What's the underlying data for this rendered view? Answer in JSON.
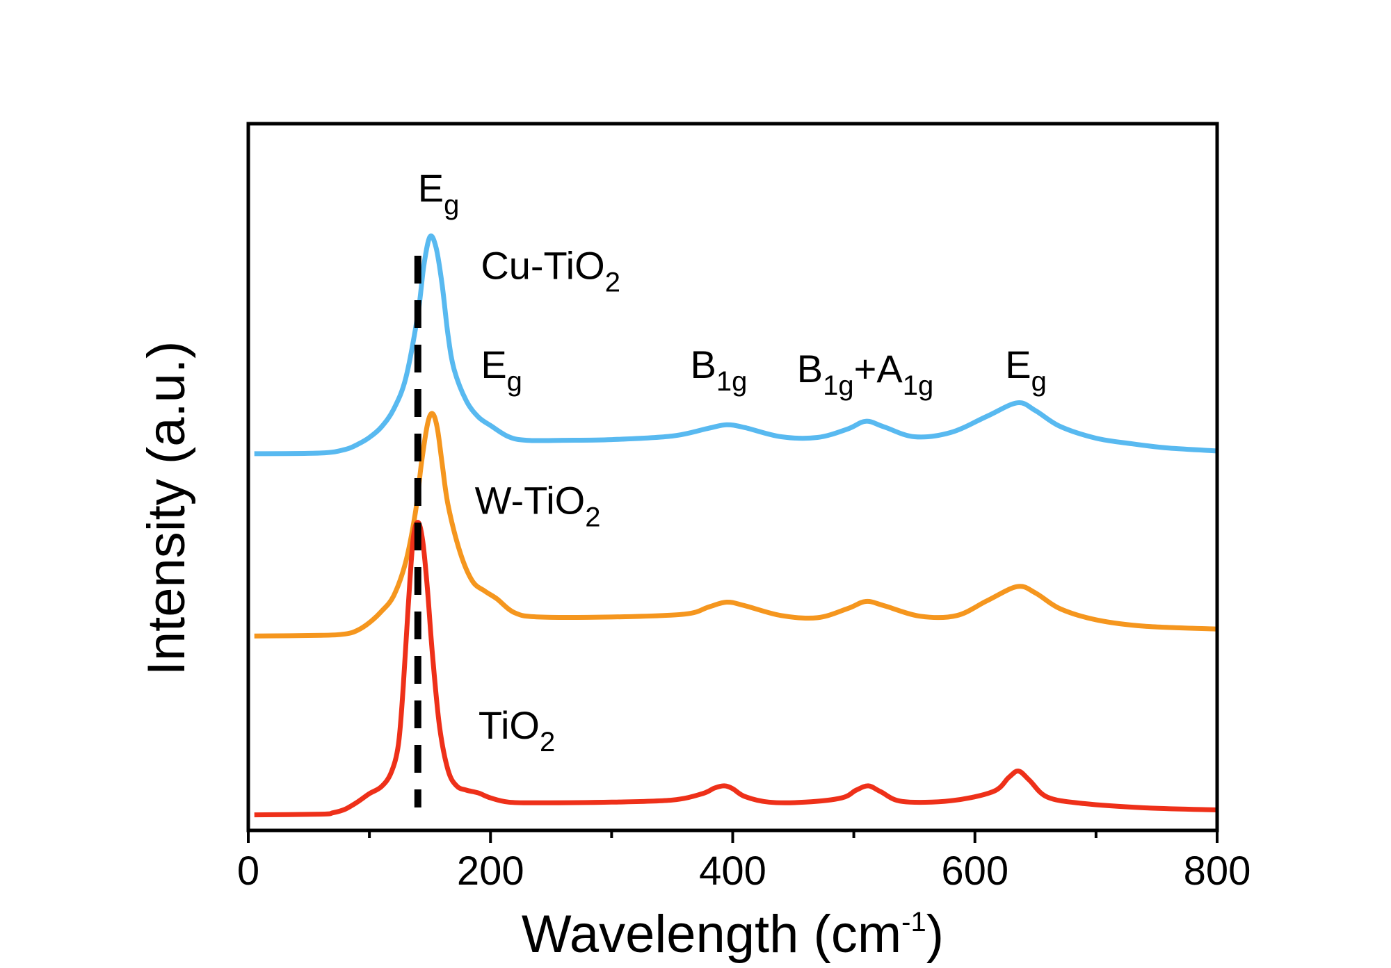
{
  "chart_data": {
    "type": "line",
    "title": "",
    "xlabel": "Wavelength (cm",
    "xlabel_sup": "-1",
    "xlabel_suffix": ")",
    "ylabel": "Intensity (a.u.)",
    "xlim": [
      0,
      800
    ],
    "ylim": [
      0,
      1000
    ],
    "x_ticks": [
      "0",
      "200",
      "400",
      "600",
      "800"
    ],
    "x_tick_values": [
      0,
      200,
      400,
      600,
      800
    ],
    "x_minor_ticks": [
      100,
      300,
      500,
      700
    ],
    "grid": false,
    "reference_line": {
      "x": 140,
      "style": "dashed",
      "color": "#000000"
    },
    "series": [
      {
        "name": "Cu-TiO2",
        "label_main": "Cu-TiO",
        "label_sub": "2",
        "color": "#58B9F0",
        "x": [
          5,
          60,
          80,
          90,
          100,
          110,
          120,
          130,
          140,
          145,
          150,
          155,
          160,
          165,
          170,
          180,
          190,
          200,
          215,
          230,
          260,
          300,
          350,
          380,
          395,
          410,
          440,
          470,
          495,
          510,
          525,
          550,
          580,
          610,
          635,
          650,
          670,
          700,
          730,
          760,
          800
        ],
        "y": [
          533,
          534,
          539,
          546,
          556,
          571,
          596,
          640,
          730,
          800,
          840,
          825,
          773,
          700,
          652,
          608,
          585,
          573,
          557,
          552,
          552,
          553,
          558,
          569,
          574,
          570,
          557,
          556,
          568,
          579,
          571,
          557,
          563,
          586,
          605,
          594,
          572,
          555,
          547,
          541,
          537
        ]
      },
      {
        "name": "W-TiO2",
        "label_main": "W-TiO",
        "label_sub": "2",
        "color": "#F5961E",
        "x": [
          5,
          60,
          80,
          90,
          100,
          110,
          120,
          130,
          138,
          143,
          148,
          152,
          156,
          160,
          165,
          175,
          185,
          195,
          205,
          220,
          240,
          300,
          360,
          380,
          395,
          410,
          440,
          470,
          495,
          510,
          525,
          555,
          585,
          610,
          635,
          650,
          670,
          700,
          740,
          800
        ],
        "y": [
          275,
          276,
          278,
          283,
          294,
          310,
          332,
          380,
          450,
          520,
          575,
          590,
          570,
          520,
          460,
          393,
          353,
          339,
          328,
          308,
          302,
          302,
          306,
          316,
          323,
          318,
          304,
          301,
          314,
          324,
          318,
          303,
          304,
          325,
          345,
          336,
          314,
          298,
          289,
          285
        ]
      },
      {
        "name": "TiO2",
        "label_main": "TiO",
        "label_sub": "2",
        "color": "#EE3019",
        "x": [
          5,
          60,
          70,
          80,
          90,
          100,
          110,
          118,
          124,
          128,
          132,
          136,
          140,
          144,
          148,
          152,
          158,
          165,
          172,
          180,
          190,
          200,
          215,
          240,
          300,
          350,
          375,
          385,
          393,
          400,
          410,
          430,
          460,
          490,
          502,
          512,
          522,
          540,
          580,
          615,
          628,
          636,
          645,
          660,
          690,
          740,
          800
        ],
        "y": [
          22,
          23,
          25,
          30,
          40,
          52,
          62,
          82,
          122,
          205,
          315,
          410,
          436,
          410,
          340,
          250,
          146,
          85,
          63,
          57,
          53,
          46,
          40,
          39,
          40,
          43,
          52,
          60,
          63,
          59,
          48,
          40,
          40,
          46,
          57,
          63,
          55,
          41,
          42,
          55,
          75,
          84,
          71,
          47,
          38,
          32,
          29
        ]
      }
    ],
    "annotations": [
      {
        "main": "E",
        "sub": "g",
        "x": 140,
        "y": 890
      },
      {
        "main": "E",
        "sub": "g",
        "x": 192,
        "y": 640
      },
      {
        "main": "B",
        "sub": "1g",
        "x": 365,
        "y": 640
      },
      {
        "main": "B",
        "sub": "1g",
        "suffix": "+A",
        "suffix_sub": "1g",
        "x": 453,
        "y": 634
      },
      {
        "main": "E",
        "sub": "g",
        "x": 625,
        "y": 640
      }
    ],
    "series_labels": [
      {
        "series": 0,
        "x": 192,
        "y": 780
      },
      {
        "series": 1,
        "x": 187,
        "y": 448
      },
      {
        "series": 2,
        "x": 190,
        "y": 130
      }
    ]
  }
}
